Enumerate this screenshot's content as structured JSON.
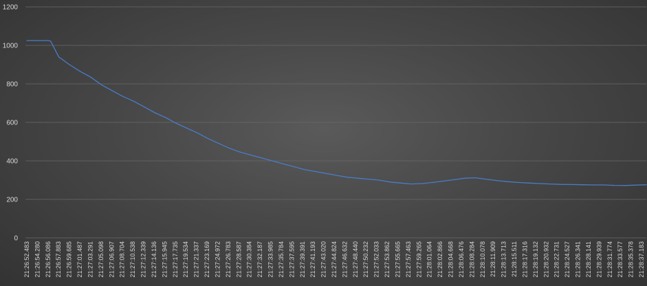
{
  "chart_data": {
    "type": "line",
    "title": "",
    "xlabel": "",
    "ylabel": "",
    "ylim": [
      0,
      1200
    ],
    "yticks": [
      0,
      200,
      400,
      600,
      800,
      1000,
      1200
    ],
    "grid": true,
    "legend": "none",
    "series_color": "#4a7cc8",
    "x_tick_labels": [
      "21:26:52.483",
      "21:26:54.280",
      "21:26:56.086",
      "21:26:57.883",
      "21:26:59.685",
      "21:27:01.487",
      "21:27:03.291",
      "21:27:05.098",
      "21:27:06.907",
      "21:27:08.704",
      "21:27:10.538",
      "21:27:12.339",
      "21:27:14.136",
      "21:27:15.945",
      "21:27:17.735",
      "21:27:19.534",
      "21:27:21.337",
      "21:27:23.169",
      "21:27:24.972",
      "21:27:26.783",
      "21:27:28.587",
      "21:27:30.384",
      "21:27:32.187",
      "21:27:33.985",
      "21:27:35.784",
      "21:27:37.595",
      "21:27:39.391",
      "21:27:41.193",
      "21:27:43.020",
      "21:27:44.824",
      "21:27:46.632",
      "21:27:48.440",
      "21:27:50.232",
      "21:27:52.033",
      "21:27:53.862",
      "21:27:55.665",
      "21:27:57.463",
      "21:27:59.265",
      "21:28:01.064",
      "21:28:02.866",
      "21:28:04.668",
      "21:28:06.476",
      "21:28:08.284",
      "21:28:10.078",
      "21:28:11.909",
      "21:28:13.713",
      "21:28:15.511",
      "21:28:17.316",
      "21:28:19.132",
      "21:28:20.932",
      "21:28:22.731",
      "21:28:24.527",
      "21:28:26.341",
      "21:28:28.141",
      "21:28:29.939",
      "21:28:31.774",
      "21:28:33.577",
      "21:28:35.378",
      "21:28:37.183"
    ],
    "series": [
      {
        "name": "Series 1",
        "values": [
          1025,
          1025,
          1025,
          1022,
          940,
          900,
          865,
          835,
          795,
          765,
          735,
          710,
          680,
          650,
          625,
          595,
          570,
          545,
          515,
          490,
          465,
          445,
          430,
          415,
          400,
          385,
          370,
          355,
          345,
          335,
          325,
          315,
          310,
          305,
          300,
          290,
          285,
          280,
          282,
          288,
          295,
          302,
          310,
          312,
          305,
          298,
          292,
          288,
          285,
          282,
          280,
          278,
          277,
          276,
          275,
          275,
          273,
          272,
          276
        ],
        "sample_times": [
          "21:26:52.483",
          "21:26:54.280",
          "21:26:56.086",
          "21:26:56.500",
          "21:26:57.883",
          "21:26:59.685",
          "21:27:01.487",
          "21:27:03.291",
          "21:27:05.098",
          "21:27:06.907",
          "21:27:08.704",
          "21:27:10.538",
          "21:27:12.339",
          "21:27:14.136",
          "21:27:15.945",
          "21:27:17.735",
          "21:27:19.534",
          "21:27:21.337",
          "21:27:23.169",
          "21:27:24.972",
          "21:27:26.783",
          "21:27:28.587",
          "21:27:30.384",
          "21:27:32.187",
          "21:27:33.985",
          "21:27:35.784",
          "21:27:37.595",
          "21:27:39.391",
          "21:27:41.193",
          "21:27:43.020",
          "21:27:44.824",
          "21:27:46.632",
          "21:27:48.440",
          "21:27:50.232",
          "21:27:52.033",
          "21:27:53.862",
          "21:27:55.665",
          "21:27:57.463",
          "21:27:59.265",
          "21:28:01.064",
          "21:28:02.866",
          "21:28:04.668",
          "21:28:06.476",
          "21:28:08.284",
          "21:28:10.078",
          "21:28:11.909",
          "21:28:13.713",
          "21:28:15.511",
          "21:28:17.316",
          "21:28:19.132",
          "21:28:20.932",
          "21:28:22.731",
          "21:28:24.527",
          "21:28:26.341",
          "21:28:28.141",
          "21:28:29.939",
          "21:28:31.774",
          "21:28:33.577",
          "21:28:37.183"
        ]
      }
    ]
  }
}
